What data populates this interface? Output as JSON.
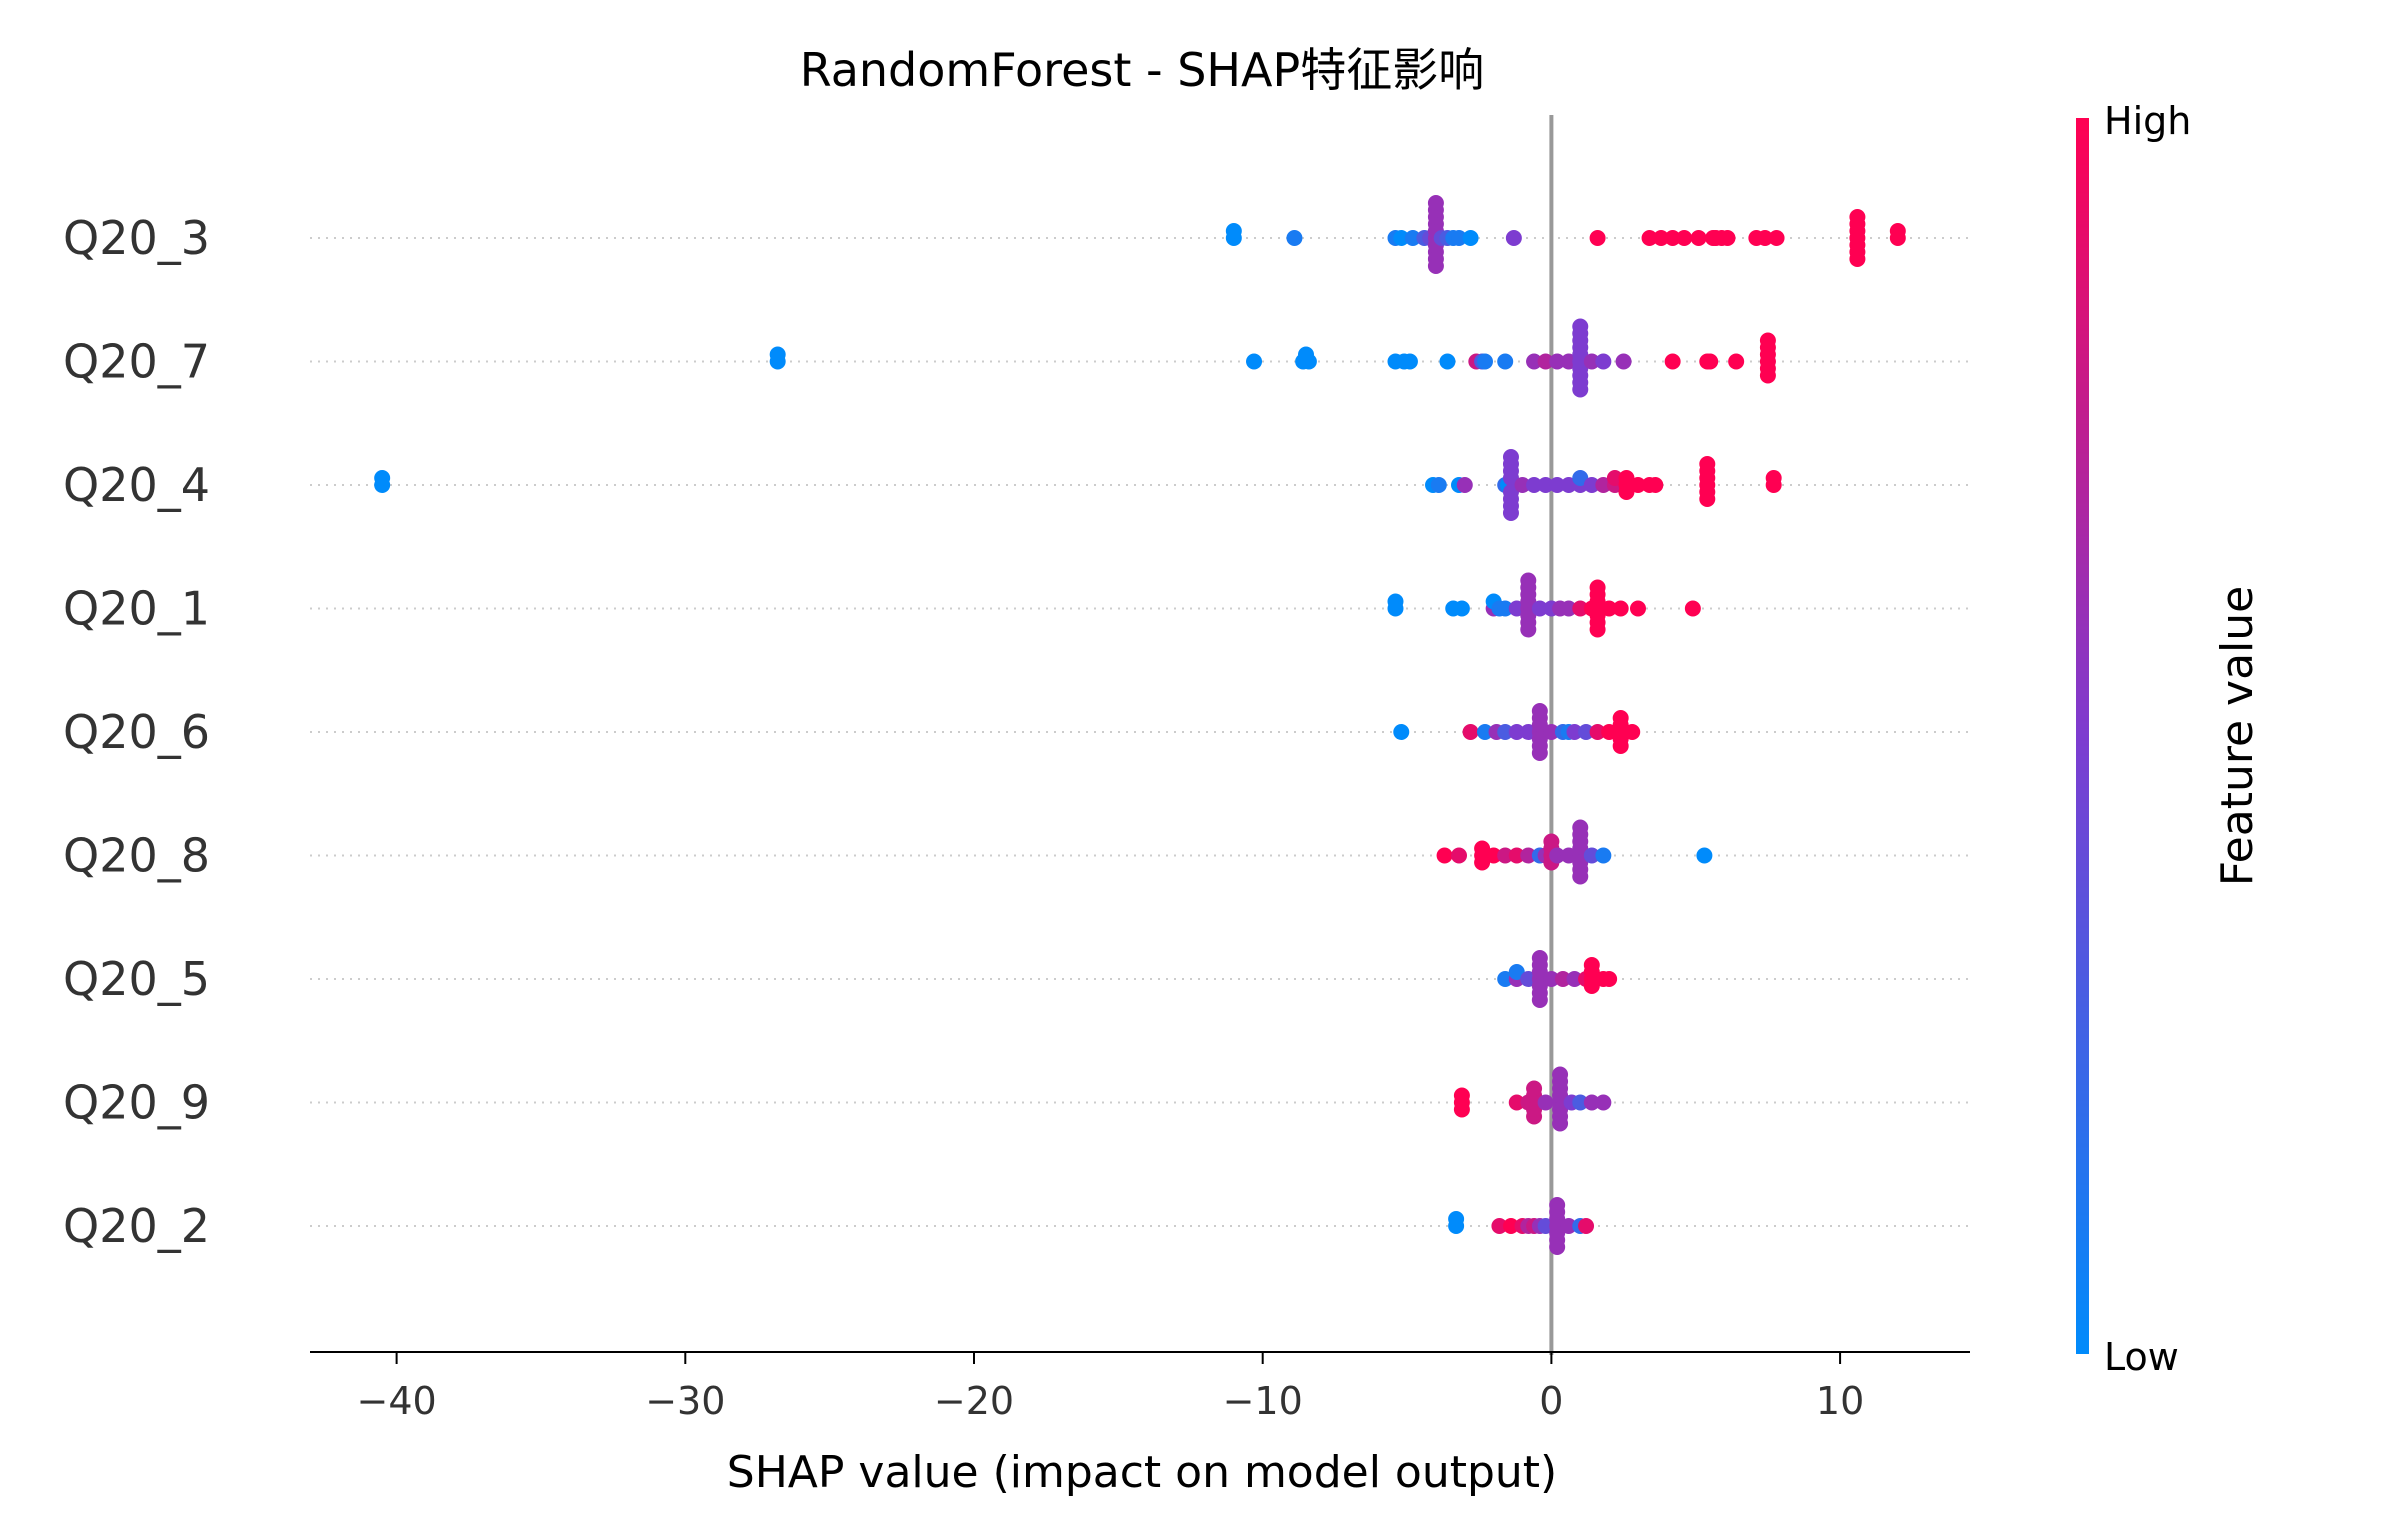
{
  "chart_data": {
    "type": "scatter",
    "title": "RandomForest - SHAP特征影响",
    "xlabel": "SHAP value (impact on model output)",
    "xlim": [
      -43,
      14.5
    ],
    "xticks": [
      -40,
      -30,
      -20,
      -10,
      0,
      10
    ],
    "xtick_labels": [
      "−40",
      "−30",
      "−20",
      "−10",
      "0",
      "10"
    ],
    "colorbar": {
      "label": "Feature value",
      "high_label": "High",
      "low_label": "Low",
      "high_color": "#ff0052",
      "low_color": "#008bfb"
    },
    "features": [
      "Q20_3",
      "Q20_7",
      "Q20_4",
      "Q20_1",
      "Q20_6",
      "Q20_8",
      "Q20_5",
      "Q20_9",
      "Q20_2"
    ],
    "series": [
      {
        "feature": "Q20_3",
        "points": [
          [
            -11,
            0.0
          ],
          [
            -11,
            0.0
          ],
          [
            -8.9,
            0.1
          ],
          [
            -5.4,
            0.1
          ],
          [
            -5.2,
            0.0
          ],
          [
            -4.8,
            0.1
          ],
          [
            -4.4,
            0.3
          ],
          [
            -4.2,
            0.4
          ],
          [
            -4,
            0.6
          ],
          [
            -4,
            0.6
          ],
          [
            -4,
            0.6
          ],
          [
            -4,
            0.6
          ],
          [
            -4,
            0.6
          ],
          [
            -4,
            0.6
          ],
          [
            -4,
            0.6
          ],
          [
            -4,
            0.6
          ],
          [
            -4,
            0.6
          ],
          [
            -4,
            0.6
          ],
          [
            -3.8,
            0.4
          ],
          [
            -3.6,
            0.3
          ],
          [
            -3.4,
            0.1
          ],
          [
            -3.2,
            0.1
          ],
          [
            -2.8,
            0.0
          ],
          [
            -1.3,
            0.5
          ],
          [
            1.6,
            1.0
          ],
          [
            3.4,
            1.0
          ],
          [
            3.8,
            1.0
          ],
          [
            4.2,
            1.0
          ],
          [
            4.6,
            1.0
          ],
          [
            5.1,
            1.0
          ],
          [
            5.6,
            1.0
          ],
          [
            5.7,
            1.0
          ],
          [
            5.9,
            1.0
          ],
          [
            6.1,
            1.0
          ],
          [
            7.1,
            1.0
          ],
          [
            7.4,
            1.0
          ],
          [
            7.8,
            1.0
          ],
          [
            10.6,
            1.0
          ],
          [
            10.6,
            1.0
          ],
          [
            10.6,
            1.0
          ],
          [
            10.6,
            1.0
          ],
          [
            10.6,
            1.0
          ],
          [
            10.6,
            1.0
          ],
          [
            10.6,
            1.0
          ],
          [
            12,
            1.0
          ],
          [
            12,
            1.0
          ]
        ]
      },
      {
        "feature": "Q20_7",
        "points": [
          [
            -26.8,
            0.0
          ],
          [
            -26.8,
            0.0
          ],
          [
            -10.3,
            0.0
          ],
          [
            -8.6,
            0.0
          ],
          [
            -8.4,
            0.0
          ],
          [
            -8.5,
            0.0
          ],
          [
            -5.4,
            0.0
          ],
          [
            -5.1,
            0.0
          ],
          [
            -4.9,
            0.0
          ],
          [
            -3.6,
            0.0
          ],
          [
            -2.6,
            0.8
          ],
          [
            -2.4,
            0.3
          ],
          [
            -2.3,
            0.1
          ],
          [
            -1.6,
            0.1
          ],
          [
            -0.6,
            0.6
          ],
          [
            -0.2,
            0.7
          ],
          [
            0.2,
            0.6
          ],
          [
            0.6,
            0.6
          ],
          [
            1.0,
            0.5
          ],
          [
            1.0,
            0.5
          ],
          [
            1.0,
            0.5
          ],
          [
            1.0,
            0.5
          ],
          [
            1.0,
            0.5
          ],
          [
            1.0,
            0.5
          ],
          [
            1.0,
            0.5
          ],
          [
            1.0,
            0.5
          ],
          [
            1.0,
            0.5
          ],
          [
            1.0,
            0.5
          ],
          [
            1.4,
            0.6
          ],
          [
            1.8,
            0.5
          ],
          [
            2.5,
            0.6
          ],
          [
            4.2,
            1.0
          ],
          [
            5.4,
            1.0
          ],
          [
            5.5,
            1.0
          ],
          [
            6.4,
            1.0
          ],
          [
            7.5,
            1.0
          ],
          [
            7.5,
            1.0
          ],
          [
            7.5,
            1.0
          ],
          [
            7.5,
            1.0
          ],
          [
            7.5,
            1.0
          ],
          [
            7.5,
            1.0
          ]
        ]
      },
      {
        "feature": "Q20_4",
        "points": [
          [
            -40.5,
            0.0
          ],
          [
            -40.5,
            0.0
          ],
          [
            -4.1,
            0.0
          ],
          [
            -3.9,
            0.1
          ],
          [
            -3.2,
            0.0
          ],
          [
            -3,
            0.6
          ],
          [
            -1.6,
            0.2
          ],
          [
            -1.5,
            0.0
          ],
          [
            -1.4,
            0.5
          ],
          [
            -1.4,
            0.5
          ],
          [
            -1.4,
            0.5
          ],
          [
            -1.4,
            0.5
          ],
          [
            -1.4,
            0.5
          ],
          [
            -1.4,
            0.5
          ],
          [
            -1.4,
            0.5
          ],
          [
            -1.4,
            0.5
          ],
          [
            -1,
            0.6
          ],
          [
            -0.6,
            0.5
          ],
          [
            -0.2,
            0.5
          ],
          [
            0.2,
            0.5
          ],
          [
            0.6,
            0.5
          ],
          [
            1.0,
            0.5
          ],
          [
            1.0,
            0.2
          ],
          [
            1.4,
            0.5
          ],
          [
            1.8,
            0.7
          ],
          [
            2.2,
            0.8
          ],
          [
            2.2,
            0.9
          ],
          [
            2.6,
            1.0
          ],
          [
            2.6,
            1.0
          ],
          [
            2.6,
            1.0
          ],
          [
            3.0,
            1.0
          ],
          [
            3.4,
            1.0
          ],
          [
            3.6,
            1.0
          ],
          [
            5.4,
            1.0
          ],
          [
            5.4,
            1.0
          ],
          [
            5.4,
            1.0
          ],
          [
            5.4,
            1.0
          ],
          [
            5.4,
            1.0
          ],
          [
            5.4,
            1.0
          ],
          [
            7.7,
            1.0
          ],
          [
            7.7,
            1.0
          ]
        ]
      },
      {
        "feature": "Q20_1",
        "points": [
          [
            -5.4,
            0.0
          ],
          [
            -5.4,
            0.0
          ],
          [
            -3.4,
            0.0
          ],
          [
            -3.1,
            0.0
          ],
          [
            -2,
            0.6
          ],
          [
            -2,
            0.0
          ],
          [
            -1.8,
            0.1
          ],
          [
            -1.6,
            0.1
          ],
          [
            -1.2,
            0.5
          ],
          [
            -0.8,
            0.6
          ],
          [
            -0.8,
            0.6
          ],
          [
            -0.8,
            0.6
          ],
          [
            -0.8,
            0.6
          ],
          [
            -0.8,
            0.6
          ],
          [
            -0.8,
            0.6
          ],
          [
            -0.8,
            0.6
          ],
          [
            -0.8,
            0.6
          ],
          [
            -0.4,
            0.5
          ],
          [
            0.0,
            0.5
          ],
          [
            0.3,
            0.6
          ],
          [
            0.6,
            0.6
          ],
          [
            1.0,
            0.9
          ],
          [
            1.4,
            1.0
          ],
          [
            1.6,
            1.0
          ],
          [
            1.6,
            1.0
          ],
          [
            1.6,
            1.0
          ],
          [
            1.6,
            1.0
          ],
          [
            1.6,
            1.0
          ],
          [
            1.6,
            1.0
          ],
          [
            1.6,
            1.0
          ],
          [
            2.0,
            1.0
          ],
          [
            2.4,
            1.0
          ],
          [
            3.0,
            1.0
          ],
          [
            4.9,
            1.0
          ]
        ]
      },
      {
        "feature": "Q20_6",
        "points": [
          [
            -5.2,
            0.0
          ],
          [
            -2.8,
            0.9
          ],
          [
            -2.3,
            0.1
          ],
          [
            -1.9,
            0.6
          ],
          [
            -1.6,
            0.3
          ],
          [
            -1.2,
            0.5
          ],
          [
            -0.8,
            0.5
          ],
          [
            -0.4,
            0.6
          ],
          [
            -0.4,
            0.6
          ],
          [
            -0.4,
            0.6
          ],
          [
            -0.4,
            0.6
          ],
          [
            -0.4,
            0.6
          ],
          [
            -0.4,
            0.6
          ],
          [
            -0.4,
            0.6
          ],
          [
            0.0,
            0.6
          ],
          [
            0.4,
            0.2
          ],
          [
            0.6,
            0.1
          ],
          [
            0.8,
            0.5
          ],
          [
            1.2,
            0.4
          ],
          [
            1.6,
            0.9
          ],
          [
            2.0,
            1.0
          ],
          [
            2.4,
            1.0
          ],
          [
            2.4,
            1.0
          ],
          [
            2.4,
            1.0
          ],
          [
            2.4,
            1.0
          ],
          [
            2.4,
            1.0
          ],
          [
            2.8,
            1.0
          ]
        ]
      },
      {
        "feature": "Q20_8",
        "points": [
          [
            -3.7,
            1.0
          ],
          [
            -3.2,
            0.9
          ],
          [
            -2.4,
            1.0
          ],
          [
            -2.4,
            1.0
          ],
          [
            -2.4,
            1.0
          ],
          [
            -2.0,
            1.0
          ],
          [
            -1.6,
            0.8
          ],
          [
            -1.2,
            0.9
          ],
          [
            -0.8,
            0.7
          ],
          [
            -0.4,
            0.2
          ],
          [
            -0.2,
            0.6
          ],
          [
            0.0,
            0.8
          ],
          [
            0.0,
            0.8
          ],
          [
            0.0,
            0.8
          ],
          [
            0.0,
            0.8
          ],
          [
            0.2,
            0.6
          ],
          [
            0.6,
            0.6
          ],
          [
            1.0,
            0.6
          ],
          [
            1.0,
            0.6
          ],
          [
            1.0,
            0.6
          ],
          [
            1.0,
            0.6
          ],
          [
            1.0,
            0.6
          ],
          [
            1.0,
            0.6
          ],
          [
            1.0,
            0.6
          ],
          [
            1.0,
            0.6
          ],
          [
            1.4,
            0.4
          ],
          [
            1.8,
            0.1
          ],
          [
            5.3,
            0.0
          ]
        ]
      },
      {
        "feature": "Q20_5",
        "points": [
          [
            -1.6,
            0.1
          ],
          [
            -1.2,
            0.6
          ],
          [
            -1.2,
            0.1
          ],
          [
            -0.8,
            0.4
          ],
          [
            -0.4,
            0.6
          ],
          [
            -0.4,
            0.6
          ],
          [
            -0.4,
            0.6
          ],
          [
            -0.4,
            0.6
          ],
          [
            -0.4,
            0.6
          ],
          [
            -0.4,
            0.6
          ],
          [
            -0.4,
            0.6
          ],
          [
            0.0,
            0.6
          ],
          [
            0.4,
            0.7
          ],
          [
            0.8,
            0.6
          ],
          [
            1.2,
            0.9
          ],
          [
            1.4,
            1.0
          ],
          [
            1.4,
            1.0
          ],
          [
            1.4,
            1.0
          ],
          [
            1.4,
            1.0
          ],
          [
            1.8,
            1.0
          ],
          [
            2.0,
            1.0
          ]
        ]
      },
      {
        "feature": "Q20_9",
        "points": [
          [
            -3.1,
            1.0
          ],
          [
            -3.1,
            1.0
          ],
          [
            -3.1,
            1.0
          ],
          [
            -1.2,
            0.9
          ],
          [
            -0.8,
            0.8
          ],
          [
            -0.6,
            0.8
          ],
          [
            -0.6,
            0.8
          ],
          [
            -0.6,
            0.8
          ],
          [
            -0.6,
            0.8
          ],
          [
            -0.6,
            0.8
          ],
          [
            -0.2,
            0.6
          ],
          [
            0.3,
            0.6
          ],
          [
            0.3,
            0.6
          ],
          [
            0.3,
            0.6
          ],
          [
            0.3,
            0.6
          ],
          [
            0.3,
            0.6
          ],
          [
            0.3,
            0.6
          ],
          [
            0.3,
            0.6
          ],
          [
            0.3,
            0.6
          ],
          [
            0.7,
            0.5
          ],
          [
            1.0,
            0.3
          ],
          [
            1.4,
            0.6
          ],
          [
            1.8,
            0.6
          ]
        ]
      },
      {
        "feature": "Q20_2",
        "points": [
          [
            -3.3,
            0.0
          ],
          [
            -3.3,
            0.0
          ],
          [
            -1.8,
            0.9
          ],
          [
            -1.4,
            1.0
          ],
          [
            -1.0,
            0.9
          ],
          [
            -0.8,
            0.7
          ],
          [
            -0.6,
            0.8
          ],
          [
            -0.4,
            0.6
          ],
          [
            -0.2,
            0.4
          ],
          [
            0.2,
            0.6
          ],
          [
            0.2,
            0.6
          ],
          [
            0.2,
            0.6
          ],
          [
            0.2,
            0.6
          ],
          [
            0.2,
            0.6
          ],
          [
            0.2,
            0.6
          ],
          [
            0.2,
            0.6
          ],
          [
            0.6,
            0.6
          ],
          [
            1.0,
            0.2
          ],
          [
            1.2,
            0.9
          ]
        ]
      }
    ]
  }
}
